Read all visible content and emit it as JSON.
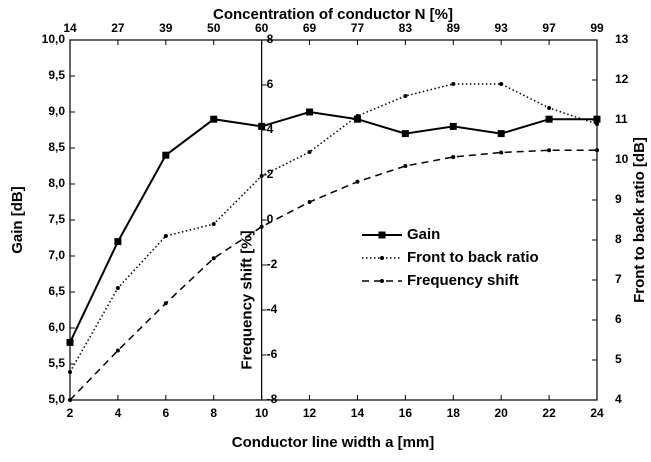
{
  "chart_data": {
    "type": "line",
    "x_label": "Conductor line width a [mm]",
    "y_label": "Gain [dB]",
    "y2_label": "Front to back ratio [dB]",
    "y3_label": "Frequency shift [%]",
    "top_label": "Concentration of conductor N [%]",
    "top_labels": [
      14,
      27,
      39,
      50,
      60,
      69,
      77,
      83,
      89,
      93,
      97,
      99
    ],
    "x": [
      2,
      4,
      6,
      8,
      10,
      12,
      14,
      16,
      18,
      20,
      22,
      24
    ],
    "xlim": [
      2,
      24
    ],
    "xticks": [
      2,
      4,
      6,
      8,
      10,
      12,
      14,
      16,
      18,
      20,
      22,
      24
    ],
    "ylim": [
      5,
      10
    ],
    "yticks": [
      {
        "value": 5,
        "label": "5,0"
      },
      {
        "value": 5.5,
        "label": "5,5"
      },
      {
        "value": 6,
        "label": "6,0"
      },
      {
        "value": 6.5,
        "label": "6,5"
      },
      {
        "value": 7,
        "label": "7,0"
      },
      {
        "value": 7.5,
        "label": "7,5"
      },
      {
        "value": 8,
        "label": "8,0"
      },
      {
        "value": 8.5,
        "label": "8,5"
      },
      {
        "value": 9,
        "label": "9,0"
      },
      {
        "value": 9.5,
        "label": "9,5"
      },
      {
        "value": 10,
        "label": "10,0"
      }
    ],
    "y2lim": [
      4,
      13
    ],
    "y2ticks": [
      4,
      5,
      6,
      7,
      8,
      9,
      10,
      11,
      12,
      13
    ],
    "y3lim": [
      -8,
      8
    ],
    "y3ticks": [
      -8,
      -6,
      -4,
      -2,
      0,
      2,
      4,
      6,
      8
    ],
    "y3_axis_at": 10,
    "series": [
      {
        "name": "Gain",
        "color": "#000000",
        "axis": "y",
        "style": "solid",
        "marker": "square",
        "values": [
          5.8,
          7.2,
          8.4,
          8.9,
          8.8,
          9.0,
          8.9,
          8.7,
          8.8,
          8.7,
          8.9,
          8.9
        ]
      },
      {
        "name": "Front to back ratio",
        "color": "#000000",
        "axis": "y2",
        "style": "dotted",
        "marker": "dot",
        "values": [
          4.7,
          6.8,
          8.1,
          8.4,
          9.6,
          10.2,
          11.1,
          11.6,
          11.9,
          11.9,
          11.3,
          10.9
        ]
      },
      {
        "name": "Frequency shift",
        "color": "#000000",
        "axis": "y3",
        "style": "dashed",
        "marker": "dot",
        "values": [
          -8,
          -5.8,
          -3.7,
          -1.7,
          -0.3,
          0.8,
          1.7,
          2.4,
          2.8,
          3.0,
          3.1,
          3.1
        ]
      }
    ]
  }
}
